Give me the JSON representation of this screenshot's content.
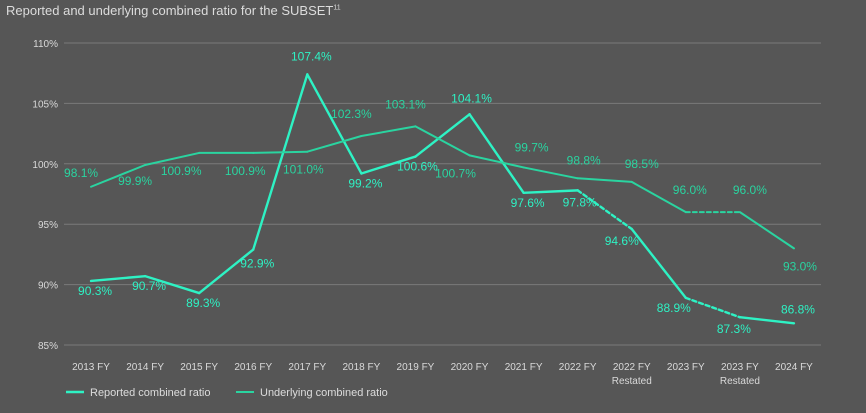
{
  "chart_data": {
    "type": "line",
    "title": "Reported and underlying combined ratio for the SUBSET",
    "title_footnote": "11",
    "categories": [
      "2013 FY",
      "2014 FY",
      "2015 FY",
      "2016 FY",
      "2017 FY",
      "2018 FY",
      "2019 FY",
      "2020 FY",
      "2021 FY",
      "2022 FY",
      "2022 FY Restated",
      "2023 FY",
      "2023 FY Restated",
      "2024 FY"
    ],
    "y_ticks": [
      "85%",
      "90%",
      "95%",
      "100%",
      "105%",
      "110%"
    ],
    "ylim": [
      85,
      110
    ],
    "grid": true,
    "legend": "bottom-left",
    "series": [
      {
        "name": "Reported combined ratio",
        "color": "#2ef2c4",
        "values": [
          90.3,
          90.7,
          89.3,
          92.9,
          107.4,
          99.2,
          100.6,
          104.1,
          97.6,
          97.8,
          94.6,
          88.9,
          87.3,
          86.8
        ],
        "labels": [
          "90.3%",
          "90.7%",
          "89.3%",
          "92.9%",
          "107.4%",
          "99.2%",
          "100.6%",
          "104.1%",
          "97.6%",
          "97.8%",
          "94.6%",
          "88.9%",
          "87.3%",
          "86.8%"
        ],
        "dashed_segments": [
          9,
          11
        ]
      },
      {
        "name": "Underlying combined ratio",
        "color": "#2ad4a0",
        "values": [
          98.1,
          99.9,
          100.9,
          100.9,
          101.0,
          102.3,
          103.1,
          100.7,
          99.7,
          98.8,
          98.5,
          96.0,
          96.0,
          93.0
        ],
        "labels": [
          "98.1%",
          "99.9%",
          "100.9%",
          "100.9%",
          "101.0%",
          "102.3%",
          "103.1%",
          "100.7%",
          "99.7%",
          "98.8%",
          "98.5%",
          "96.0%",
          "96.0%",
          "93.0%"
        ],
        "dashed_segments": [
          11
        ]
      }
    ]
  }
}
